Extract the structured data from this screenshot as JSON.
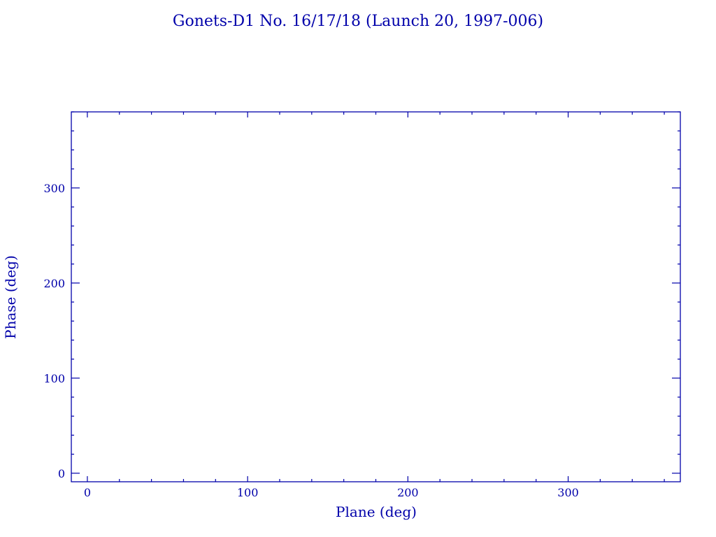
{
  "chart_data": {
    "type": "scatter",
    "title": "Gonets-D1 No. 16/17/18 (Launch 20, 1997-006)",
    "xlabel": "Plane (deg)",
    "ylabel": "Phase (deg)",
    "xlim": [
      -10,
      370
    ],
    "ylim": [
      -9,
      380
    ],
    "xticks": [
      0,
      100,
      200,
      300
    ],
    "yticks": [
      0,
      100,
      200,
      300
    ],
    "xtick_labels": [
      "0",
      "100",
      "200",
      "300"
    ],
    "ytick_labels": [
      "0",
      "100",
      "200",
      "300"
    ],
    "minor_tick_step": 20,
    "grid": false,
    "series": [
      {
        "x": [],
        "y": []
      }
    ],
    "color": "#0000aa"
  }
}
